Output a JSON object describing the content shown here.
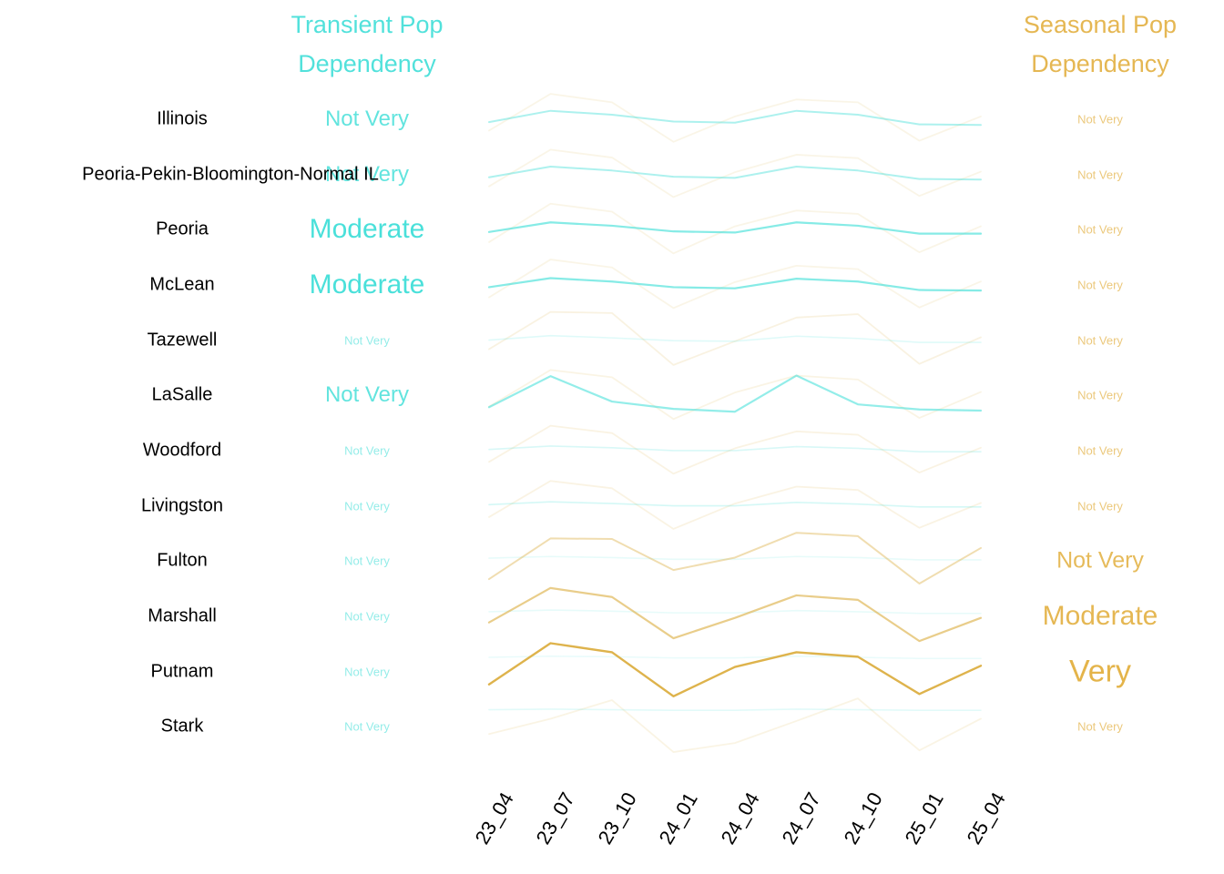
{
  "headers": {
    "transient_line1": "Transient Pop",
    "transient_line2": "Dependency",
    "seasonal_line1": "Seasonal Pop",
    "seasonal_line2": "Dependency"
  },
  "colors": {
    "cyan": "#3BDED7",
    "gold": "#E4B44A",
    "gold_line": "#DCAF42",
    "region_text": "#000000",
    "background": "#FFFFFF"
  },
  "chart_data": {
    "type": "line",
    "x": [
      "23_04",
      "23_07",
      "23_10",
      "24_01",
      "24_04",
      "24_07",
      "24_10",
      "25_01",
      "25_04"
    ],
    "y_encoding": "relative dependency level per row band, 50 = row baseline, range 0-100",
    "legend": {
      "transient_color_name": "cyan",
      "seasonal_color_name": "gold"
    },
    "rows": [
      {
        "region": "Illinois",
        "transient": {
          "label": "Not Very",
          "font_px": 24,
          "text_alpha": 0.8,
          "line_alpha": 0.42,
          "line_width": 2.0,
          "values": [
            45,
            65,
            58,
            46,
            44,
            65,
            58,
            41,
            40
          ]
        },
        "seasonal": {
          "label": "Not Very",
          "font_px": 13,
          "text_alpha": 0.72,
          "line_alpha": 0.13,
          "line_width": 1.8,
          "values": [
            30,
            95,
            80,
            10,
            55,
            85,
            80,
            12,
            55
          ]
        }
      },
      {
        "region": "Peoria-Pekin-Bloomington-Normal IL",
        "transient": {
          "label": "Not Very",
          "font_px": 24,
          "text_alpha": 0.8,
          "line_alpha": 0.42,
          "line_width": 2.0,
          "values": [
            45,
            64,
            57,
            46,
            44,
            64,
            57,
            42,
            41
          ]
        },
        "seasonal": {
          "label": "Not Very",
          "font_px": 13,
          "text_alpha": 0.72,
          "line_alpha": 0.13,
          "line_width": 1.8,
          "values": [
            29,
            94,
            80,
            10,
            54,
            85,
            79,
            12,
            55
          ]
        }
      },
      {
        "region": "Peoria",
        "transient": {
          "label": "Moderate",
          "font_px": 30,
          "text_alpha": 0.92,
          "line_alpha": 0.62,
          "line_width": 2.2,
          "values": [
            46,
            63,
            57,
            47,
            45,
            63,
            57,
            43,
            43
          ]
        },
        "seasonal": {
          "label": "Not Very",
          "font_px": 13,
          "text_alpha": 0.72,
          "line_alpha": 0.13,
          "line_width": 1.8,
          "values": [
            28,
            96,
            82,
            8,
            56,
            84,
            78,
            10,
            56
          ]
        }
      },
      {
        "region": "McLean",
        "transient": {
          "label": "Moderate",
          "font_px": 30,
          "text_alpha": 0.92,
          "line_alpha": 0.62,
          "line_width": 2.2,
          "values": [
            46,
            62,
            56,
            46,
            44,
            61,
            56,
            41,
            40
          ]
        },
        "seasonal": {
          "label": "Not Very",
          "font_px": 13,
          "text_alpha": 0.72,
          "line_alpha": 0.13,
          "line_width": 1.8,
          "values": [
            28,
            95,
            81,
            9,
            55,
            84,
            78,
            10,
            56
          ]
        }
      },
      {
        "region": "Tazewell",
        "transient": {
          "label": "Not Very",
          "font_px": 13,
          "text_alpha": 0.55,
          "line_alpha": 0.16,
          "line_width": 1.6,
          "values": [
            50,
            58,
            54,
            49,
            48,
            57,
            53,
            46,
            46
          ]
        },
        "seasonal": {
          "label": "Not Very",
          "font_px": 13,
          "text_alpha": 0.72,
          "line_alpha": 0.16,
          "line_width": 1.8,
          "values": [
            34,
            100,
            98,
            6,
            48,
            90,
            96,
            8,
            55
          ]
        }
      },
      {
        "region": "LaSalle",
        "transient": {
          "label": "Not Very",
          "font_px": 24,
          "text_alpha": 0.8,
          "line_alpha": 0.55,
          "line_width": 2.2,
          "values": [
            29,
            84,
            39,
            26,
            21,
            85,
            34,
            25,
            23
          ]
        },
        "seasonal": {
          "label": "Not Very",
          "font_px": 13,
          "text_alpha": 0.72,
          "line_alpha": 0.14,
          "line_width": 1.8,
          "values": [
            30,
            95,
            82,
            8,
            55,
            85,
            78,
            10,
            56
          ]
        }
      },
      {
        "region": "Woodford",
        "transient": {
          "label": "Not Very",
          "font_px": 13,
          "text_alpha": 0.55,
          "line_alpha": 0.2,
          "line_width": 1.6,
          "values": [
            52,
            58,
            55,
            50,
            50,
            57,
            54,
            48,
            48
          ]
        },
        "seasonal": {
          "label": "Not Very",
          "font_px": 13,
          "text_alpha": 0.72,
          "line_alpha": 0.15,
          "line_width": 1.8,
          "values": [
            30,
            94,
            81,
            9,
            54,
            84,
            78,
            11,
            55
          ]
        }
      },
      {
        "region": "Livingston",
        "transient": {
          "label": "Not Very",
          "font_px": 13,
          "text_alpha": 0.55,
          "line_alpha": 0.22,
          "line_width": 1.6,
          "values": [
            52,
            57,
            54,
            50,
            50,
            56,
            53,
            48,
            48
          ]
        },
        "seasonal": {
          "label": "Not Very",
          "font_px": 13,
          "text_alpha": 0.72,
          "line_alpha": 0.15,
          "line_width": 1.8,
          "values": [
            30,
            94,
            81,
            9,
            54,
            84,
            78,
            11,
            55
          ]
        }
      },
      {
        "region": "Fulton",
        "transient": {
          "label": "Not Very",
          "font_px": 13,
          "text_alpha": 0.55,
          "line_alpha": 0.12,
          "line_width": 1.6,
          "values": [
            55,
            58,
            56,
            53,
            53,
            58,
            56,
            52,
            52
          ]
        },
        "seasonal": {
          "label": "Not Very",
          "font_px": 25,
          "text_alpha": 0.9,
          "line_alpha": 0.42,
          "line_width": 2.0,
          "values": [
            18,
            90,
            89,
            34,
            56,
            100,
            94,
            10,
            73
          ]
        }
      },
      {
        "region": "Marshall",
        "transient": {
          "label": "Not Very",
          "font_px": 13,
          "text_alpha": 0.55,
          "line_alpha": 0.12,
          "line_width": 1.6,
          "values": [
            58,
            61,
            59,
            56,
            56,
            60,
            58,
            55,
            55
          ]
        },
        "seasonal": {
          "label": "Moderate",
          "font_px": 30,
          "text_alpha": 0.95,
          "line_alpha": 0.62,
          "line_width": 2.2,
          "values": [
            39,
            100,
            84,
            11,
            47,
            87,
            79,
            6,
            47
          ]
        }
      },
      {
        "region": "Putnam",
        "transient": {
          "label": "Not Very",
          "font_px": 13,
          "text_alpha": 0.55,
          "line_alpha": 0.11,
          "line_width": 1.6,
          "values": [
            75,
            77,
            76,
            74,
            74,
            77,
            75,
            73,
            73
          ]
        },
        "seasonal": {
          "label": "Very",
          "font_px": 34,
          "text_alpha": 1.0,
          "line_alpha": 0.95,
          "line_width": 2.4,
          "values": [
            27,
            100,
            84,
            6,
            58,
            84,
            76,
            10,
            60
          ]
        }
      },
      {
        "region": "Stark",
        "transient": {
          "label": "Not Very",
          "font_px": 13,
          "text_alpha": 0.55,
          "line_alpha": 0.15,
          "line_width": 1.6,
          "values": [
            80,
            81,
            80,
            79,
            79,
            81,
            80,
            79,
            79
          ]
        },
        "seasonal": {
          "label": "Not Very",
          "font_px": 13,
          "text_alpha": 0.72,
          "line_alpha": 0.14,
          "line_width": 1.8,
          "values": [
            37,
            64,
            97,
            5,
            21,
            60,
            100,
            8,
            64
          ]
        }
      }
    ]
  }
}
